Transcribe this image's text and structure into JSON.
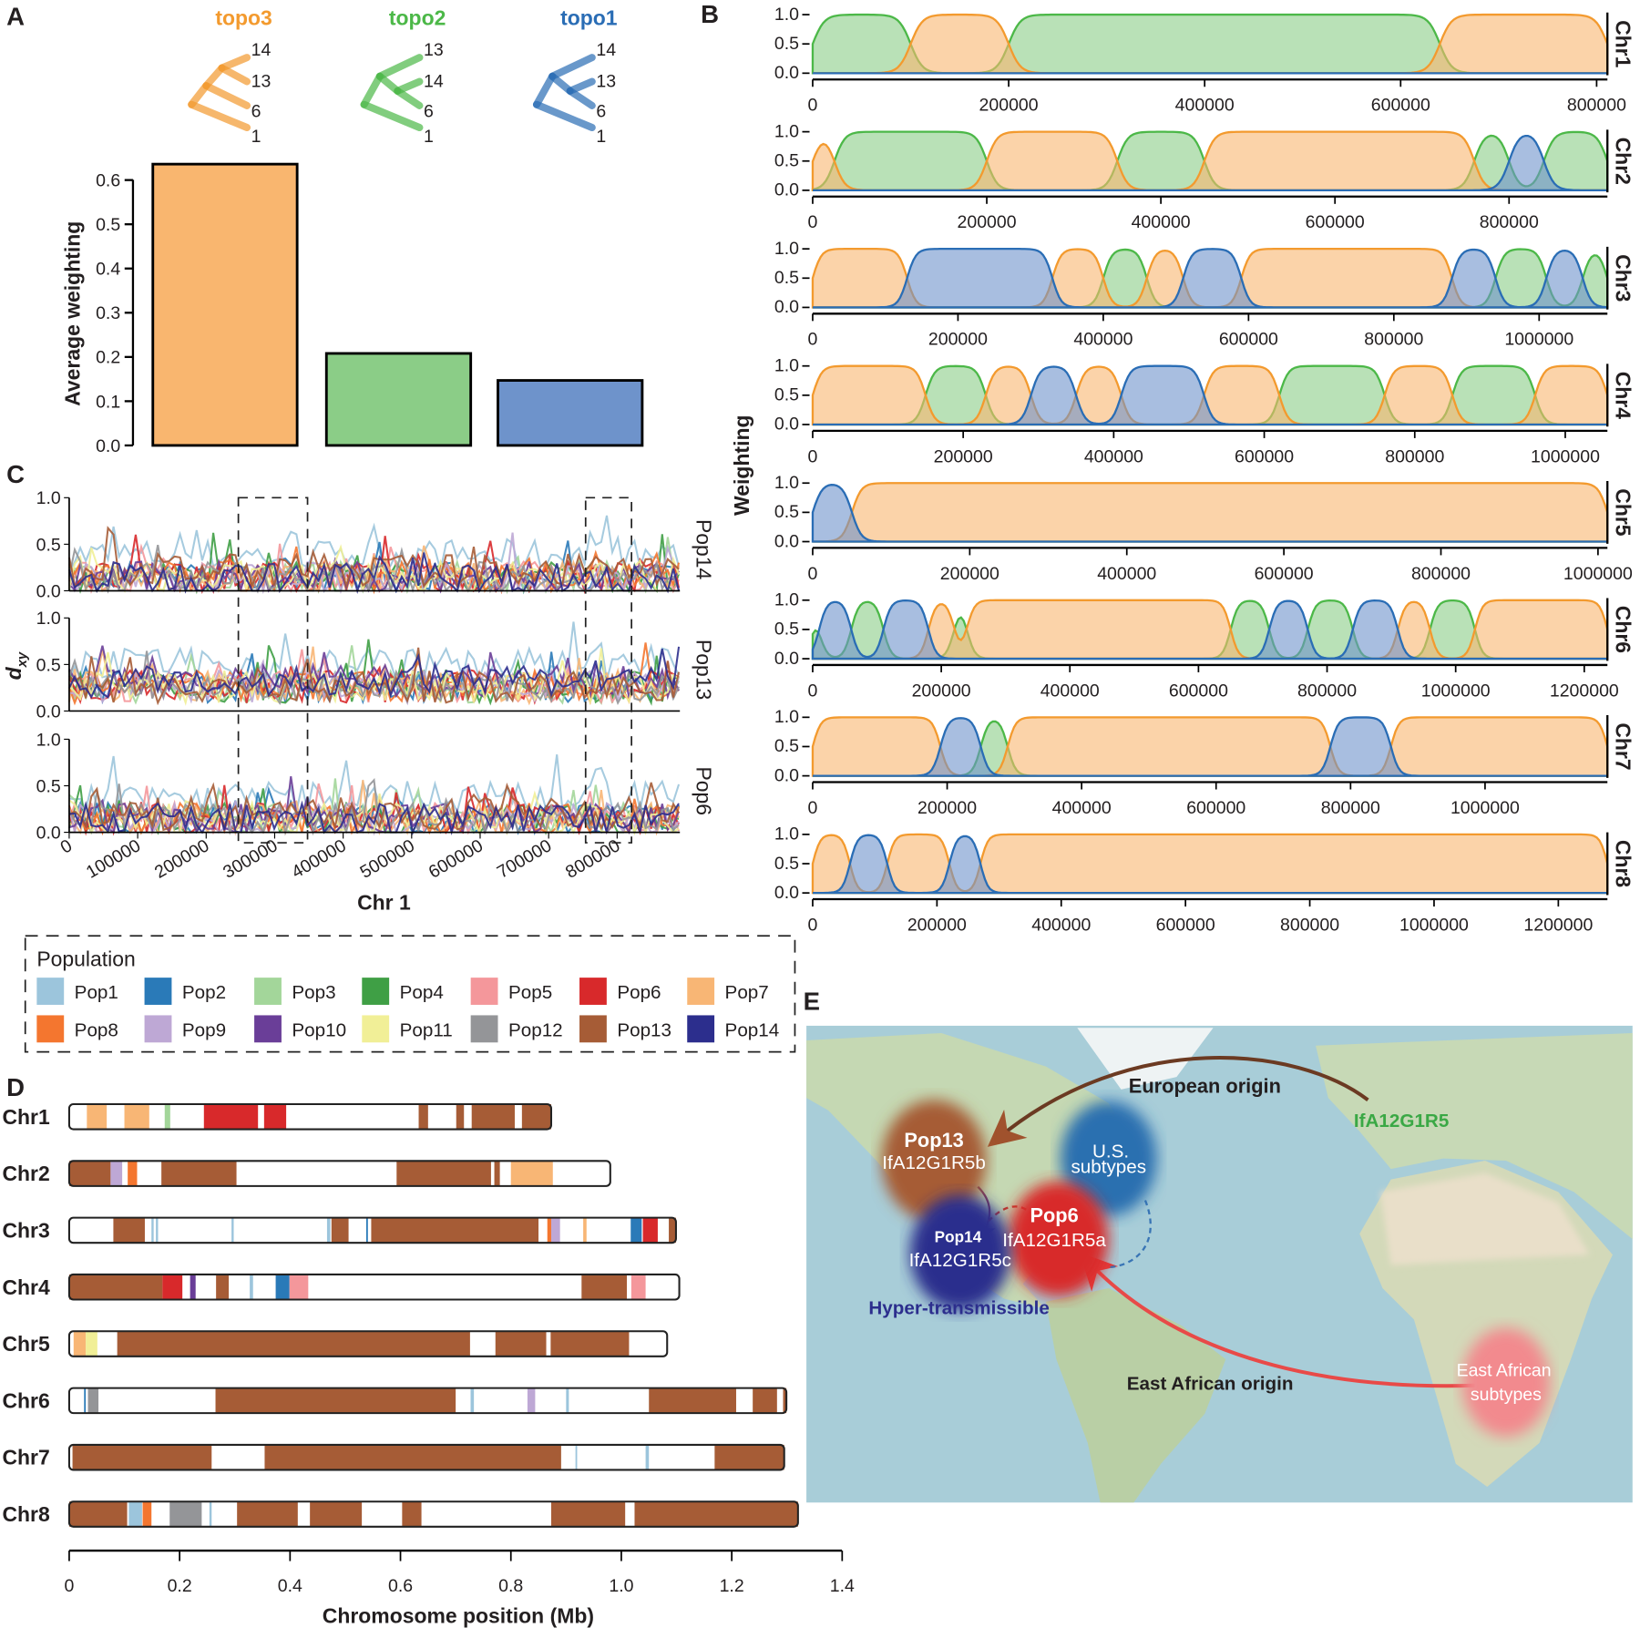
{
  "panel_labels": [
    "A",
    "B",
    "C",
    "D",
    "E"
  ],
  "colors": {
    "topo3": "#f39a2e",
    "topo2": "#4cb848",
    "topo1": "#2a6db5",
    "topo3_fill": "#f9b66f",
    "topo2_fill": "#8bcd87",
    "topo1_fill": "#6e93cb"
  },
  "chart_data": [
    {
      "panel": "A",
      "type": "bar",
      "categories": [
        "topo3",
        "topo2",
        "topo1"
      ],
      "values": [
        0.636,
        0.208,
        0.147
      ],
      "ylabel": "Average weighting",
      "ylim": [
        0,
        0.6
      ],
      "yticks": [
        "0.0",
        "0.1",
        "0.2",
        "0.3",
        "0.4",
        "0.5",
        "0.6"
      ],
      "trees": [
        {
          "name": "topo3",
          "leaves": [
            "14",
            "13",
            "6",
            "1"
          ]
        },
        {
          "name": "topo2",
          "leaves": [
            "13",
            "14",
            "6",
            "1"
          ]
        },
        {
          "name": "topo1",
          "leaves": [
            "14",
            "13",
            "6",
            "1"
          ]
        }
      ]
    },
    {
      "panel": "B",
      "type": "area",
      "ylabel": "Weighting",
      "yticks": [
        "1.0",
        "0.5",
        "0.0"
      ],
      "chromosomes": [
        {
          "name": "Chr1",
          "xmax": 811000,
          "xticks": [
            0,
            200000,
            400000,
            600000,
            800000
          ],
          "segments": [
            [
              0,
              100000,
              "topo2"
            ],
            [
              100000,
              200000,
              "topo3"
            ],
            [
              200000,
              640000,
              "topo2"
            ],
            [
              640000,
              811000,
              "topo3"
            ]
          ]
        },
        {
          "name": "Chr2",
          "xmax": 913000,
          "xticks": [
            0,
            200000,
            400000,
            600000,
            800000
          ],
          "segments": [
            [
              0,
              25000,
              "topo3"
            ],
            [
              25000,
              200000,
              "topo2"
            ],
            [
              200000,
              350000,
              "topo3"
            ],
            [
              350000,
              450000,
              "topo2"
            ],
            [
              450000,
              760000,
              "topo3"
            ],
            [
              760000,
              800000,
              "topo2"
            ],
            [
              800000,
              840000,
              "topo1"
            ],
            [
              840000,
              913000,
              "topo2"
            ]
          ]
        },
        {
          "name": "Chr3",
          "xmax": 1094000,
          "xticks": [
            0,
            200000,
            400000,
            600000,
            800000,
            1000000
          ],
          "segments": [
            [
              0,
              130000,
              "topo3"
            ],
            [
              130000,
              330000,
              "topo1"
            ],
            [
              330000,
              400000,
              "topo3"
            ],
            [
              400000,
              460000,
              "topo2"
            ],
            [
              460000,
              510000,
              "topo3"
            ],
            [
              510000,
              590000,
              "topo1"
            ],
            [
              590000,
              880000,
              "topo3"
            ],
            [
              880000,
              940000,
              "topo1"
            ],
            [
              940000,
              1010000,
              "topo2"
            ],
            [
              1010000,
              1060000,
              "topo1"
            ],
            [
              1060000,
              1094000,
              "topo2"
            ]
          ]
        },
        {
          "name": "Chr4",
          "xmax": 1056000,
          "xticks": [
            0,
            200000,
            400000,
            600000,
            800000,
            1000000
          ],
          "segments": [
            [
              0,
              150000,
              "topo3"
            ],
            [
              150000,
              230000,
              "topo2"
            ],
            [
              230000,
              290000,
              "topo3"
            ],
            [
              290000,
              350000,
              "topo1"
            ],
            [
              350000,
              410000,
              "topo3"
            ],
            [
              410000,
              520000,
              "topo1"
            ],
            [
              520000,
              620000,
              "topo3"
            ],
            [
              620000,
              760000,
              "topo2"
            ],
            [
              760000,
              850000,
              "topo3"
            ],
            [
              850000,
              960000,
              "topo2"
            ],
            [
              960000,
              1056000,
              "topo3"
            ]
          ]
        },
        {
          "name": "Chr5",
          "xmax": 1012000,
          "xticks": [
            0,
            200000,
            400000,
            600000,
            800000,
            1000000
          ],
          "segments": [
            [
              0,
              50000,
              "topo1"
            ],
            [
              50000,
              1012000,
              "topo3"
            ]
          ]
        },
        {
          "name": "Chr6",
          "xmax": 1236000,
          "xticks": [
            0,
            200000,
            400000,
            600000,
            800000,
            1000000,
            1200000
          ],
          "segments": [
            [
              0,
              10000,
              "topo2"
            ],
            [
              10000,
              60000,
              "topo1"
            ],
            [
              60000,
              110000,
              "topo2"
            ],
            [
              110000,
              180000,
              "topo1"
            ],
            [
              180000,
              220000,
              "topo3"
            ],
            [
              220000,
              240000,
              "topo2"
            ],
            [
              240000,
              650000,
              "topo3"
            ],
            [
              650000,
              710000,
              "topo2"
            ],
            [
              710000,
              770000,
              "topo1"
            ],
            [
              770000,
              840000,
              "topo2"
            ],
            [
              840000,
              910000,
              "topo1"
            ],
            [
              910000,
              960000,
              "topo3"
            ],
            [
              960000,
              1030000,
              "topo2"
            ],
            [
              1030000,
              1236000,
              "topo3"
            ]
          ]
        },
        {
          "name": "Chr7",
          "xmax": 1182000,
          "xticks": [
            0,
            200000,
            400000,
            600000,
            800000,
            1000000
          ],
          "segments": [
            [
              0,
              190000,
              "topo3"
            ],
            [
              190000,
              250000,
              "topo1"
            ],
            [
              250000,
              290000,
              "topo2"
            ],
            [
              290000,
              770000,
              "topo3"
            ],
            [
              770000,
              860000,
              "topo1"
            ],
            [
              860000,
              1182000,
              "topo3"
            ]
          ]
        },
        {
          "name": "Chr8",
          "xmax": 1279000,
          "xticks": [
            0,
            200000,
            400000,
            600000,
            800000,
            1000000,
            1200000
          ],
          "segments": [
            [
              0,
              60000,
              "topo3"
            ],
            [
              60000,
              120000,
              "topo1"
            ],
            [
              120000,
              220000,
              "topo3"
            ],
            [
              220000,
              270000,
              "topo1"
            ],
            [
              270000,
              1279000,
              "topo3"
            ]
          ]
        }
      ]
    },
    {
      "panel": "C",
      "type": "line",
      "xlabel": "Chr 1",
      "ylabel": "d",
      "ylabel_sub": "xy",
      "xticks": [
        "0",
        "100000",
        "200000",
        "300000",
        "400000",
        "500000",
        "600000",
        "700000",
        "800000"
      ],
      "yticks": [
        "0.0",
        "0.5",
        "1.0"
      ],
      "subplots": [
        "Pop14",
        "Pop13",
        "Pop6"
      ],
      "highlight_regions": [
        [
          247000,
          348000
        ],
        [
          754000,
          821000
        ]
      ]
    },
    {
      "panel": "D",
      "type": "chromosome-painting",
      "xlabel": "Chromosome position (Mb)",
      "xticks": [
        "0",
        "0.2",
        "0.4",
        "0.6",
        "0.8",
        "1.0",
        "1.2",
        "1.4"
      ],
      "chromosomes": [
        {
          "name": "Chr1",
          "length": 0.873,
          "blocks": [
            [
              0.032,
              0.068,
              "Pop7"
            ],
            [
              0.1,
              0.145,
              "Pop7"
            ],
            [
              0.173,
              0.183,
              "Pop3"
            ],
            [
              0.244,
              0.342,
              "Pop6"
            ],
            [
              0.353,
              0.393,
              "Pop6"
            ],
            [
              0.633,
              0.65,
              "Pop13"
            ],
            [
              0.701,
              0.715,
              "Pop13"
            ],
            [
              0.729,
              0.807,
              "Pop13"
            ],
            [
              0.82,
              0.873,
              "Pop13"
            ]
          ]
        },
        {
          "name": "Chr2",
          "length": 0.98,
          "blocks": [
            [
              0,
              0.075,
              "Pop13"
            ],
            [
              0.075,
              0.096,
              "Pop9"
            ],
            [
              0.106,
              0.123,
              "Pop8"
            ],
            [
              0.167,
              0.303,
              "Pop13"
            ],
            [
              0.593,
              0.764,
              "Pop13"
            ],
            [
              0.77,
              0.78,
              "Pop13"
            ],
            [
              0.8,
              0.876,
              "Pop7"
            ]
          ]
        },
        {
          "name": "Chr3",
          "length": 1.099,
          "blocks": [
            [
              0.08,
              0.137,
              "Pop13"
            ],
            [
              0.149,
              0.153,
              "Pop1"
            ],
            [
              0.157,
              0.161,
              "Pop1"
            ],
            [
              0.294,
              0.298,
              "Pop1"
            ],
            [
              0.467,
              0.473,
              "Pop1"
            ],
            [
              0.475,
              0.506,
              "Pop13"
            ],
            [
              0.538,
              0.541,
              "Pop2"
            ],
            [
              0.547,
              0.85,
              "Pop13"
            ],
            [
              0.866,
              0.873,
              "Pop8"
            ],
            [
              0.873,
              0.889,
              "Pop9"
            ],
            [
              0.931,
              0.937,
              "Pop7"
            ],
            [
              1.017,
              1.037,
              "Pop2"
            ],
            [
              1.039,
              1.066,
              "Pop6"
            ],
            [
              1.086,
              1.099,
              "Pop13"
            ]
          ]
        },
        {
          "name": "Chr4",
          "length": 1.105,
          "blocks": [
            [
              0,
              0.169,
              "Pop13"
            ],
            [
              0.169,
              0.205,
              "Pop6"
            ],
            [
              0.219,
              0.229,
              "Pop10"
            ],
            [
              0.266,
              0.289,
              "Pop13"
            ],
            [
              0.327,
              0.333,
              "Pop1"
            ],
            [
              0.374,
              0.399,
              "Pop2"
            ],
            [
              0.399,
              0.433,
              "Pop5"
            ],
            [
              0.928,
              1.01,
              "Pop13"
            ],
            [
              1.018,
              1.044,
              "Pop5"
            ]
          ]
        },
        {
          "name": "Chr5",
          "length": 1.083,
          "blocks": [
            [
              0.008,
              0.03,
              "Pop7"
            ],
            [
              0.03,
              0.051,
              "Pop11"
            ],
            [
              0.087,
              0.726,
              "Pop13"
            ],
            [
              0.772,
              0.864,
              "Pop13"
            ],
            [
              0.872,
              1.014,
              "Pop13"
            ]
          ]
        },
        {
          "name": "Chr6",
          "length": 1.299,
          "blocks": [
            [
              0.027,
              0.03,
              "Pop2"
            ],
            [
              0.034,
              0.053,
              "Pop12"
            ],
            [
              0.265,
              0.7,
              "Pop13"
            ],
            [
              0.727,
              0.733,
              "Pop1"
            ],
            [
              0.83,
              0.844,
              "Pop9"
            ],
            [
              0.9,
              0.905,
              "Pop1"
            ],
            [
              1.05,
              1.208,
              "Pop13"
            ],
            [
              1.238,
              1.282,
              "Pop13"
            ],
            [
              1.293,
              1.299,
              "Pop13"
            ]
          ]
        },
        {
          "name": "Chr7",
          "length": 1.295,
          "blocks": [
            [
              0.006,
              0.258,
              "Pop13"
            ],
            [
              0.354,
              0.891,
              "Pop13"
            ],
            [
              0.917,
              0.92,
              "Pop1"
            ],
            [
              1.044,
              1.05,
              "Pop1"
            ],
            [
              1.169,
              1.295,
              "Pop13"
            ]
          ]
        },
        {
          "name": "Chr8",
          "length": 1.32,
          "blocks": [
            [
              0,
              0.105,
              "Pop13"
            ],
            [
              0.108,
              0.132,
              "Pop1"
            ],
            [
              0.133,
              0.149,
              "Pop8"
            ],
            [
              0.182,
              0.24,
              "Pop12"
            ],
            [
              0.254,
              0.258,
              "Pop1"
            ],
            [
              0.304,
              0.414,
              "Pop13"
            ],
            [
              0.436,
              0.53,
              "Pop13"
            ],
            [
              0.603,
              0.638,
              "Pop13"
            ],
            [
              0.873,
              1.007,
              "Pop13"
            ],
            [
              1.024,
              1.32,
              "Pop13"
            ]
          ]
        }
      ]
    }
  ],
  "legend": {
    "title": "Population",
    "items": [
      {
        "label": "Pop1",
        "color": "#9cc5dc"
      },
      {
        "label": "Pop2",
        "color": "#2a7ab8"
      },
      {
        "label": "Pop3",
        "color": "#a3d69a"
      },
      {
        "label": "Pop4",
        "color": "#3f9f45"
      },
      {
        "label": "Pop5",
        "color": "#f4979b"
      },
      {
        "label": "Pop6",
        "color": "#d8292b"
      },
      {
        "label": "Pop7",
        "color": "#f8b675"
      },
      {
        "label": "Pop8",
        "color": "#f4762f"
      },
      {
        "label": "Pop9",
        "color": "#bea8d5"
      },
      {
        "label": "Pop10",
        "color": "#6a3e98"
      },
      {
        "label": "Pop11",
        "color": "#f1ef97"
      },
      {
        "label": "Pop12",
        "color": "#949598"
      },
      {
        "label": "Pop13",
        "color": "#a65c36"
      },
      {
        "label": "Pop14",
        "color": "#2c2e8d"
      }
    ]
  },
  "map": {
    "european_origin": "European origin",
    "source_subtype": "IfA12G1R5",
    "pop13_name": "Pop13",
    "pop13_subtype": "IfA12G1R5b",
    "us_line1": "U.S.",
    "us_line2": "subtypes",
    "pop6_name": "Pop6",
    "pop6_subtype": "IfA12G1R5a",
    "pop14_name": "Pop14",
    "pop14_subtype": "IfA12G1R5c",
    "hyper": "Hyper-transmissible",
    "east_african_origin": "East African origin",
    "ea_line1": "East African",
    "ea_line2": "subtypes"
  }
}
